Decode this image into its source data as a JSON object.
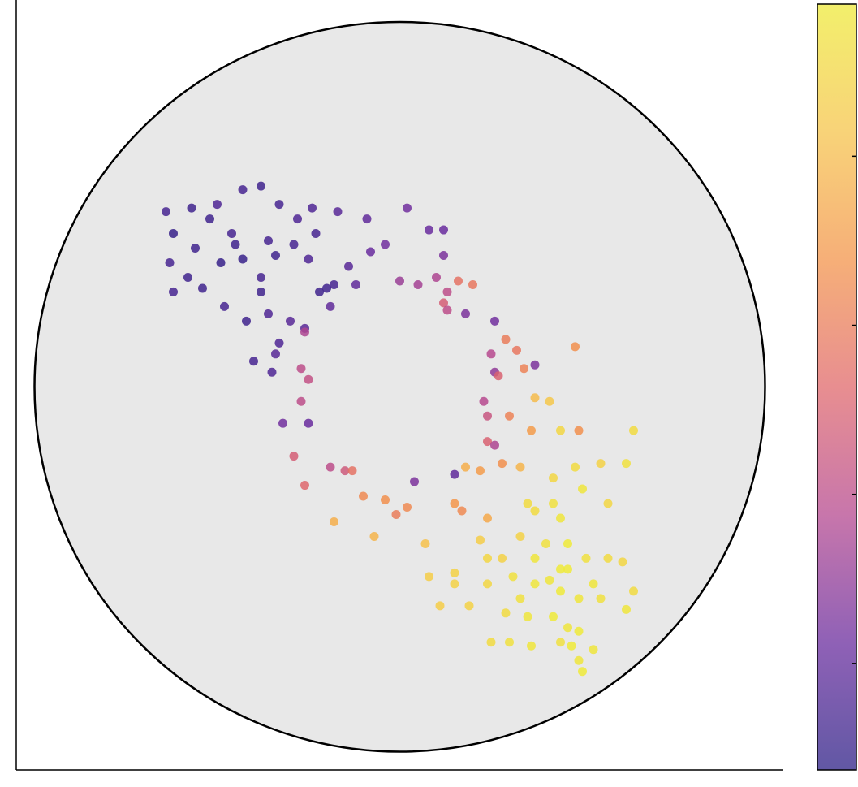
{
  "chart_data": {
    "type": "scatter",
    "x": [
      -0.64,
      -0.57,
      -0.5,
      -0.43,
      -0.38,
      -0.33,
      -0.24,
      -0.17,
      -0.09,
      -0.04,
      -0.62,
      -0.56,
      -0.63,
      -0.58,
      -0.62,
      -0.54,
      -0.49,
      -0.45,
      -0.43,
      -0.38,
      -0.34,
      -0.29,
      -0.25,
      -0.2,
      -0.18,
      -0.22,
      -0.14,
      -0.08,
      -0.12,
      -0.48,
      -0.42,
      -0.36,
      -0.3,
      -0.33,
      -0.4,
      -0.34,
      -0.38,
      -0.46,
      -0.52,
      -0.36,
      -0.28,
      -0.23,
      -0.19,
      -0.26,
      -0.35,
      -0.26,
      -0.27,
      -0.25,
      -0.27,
      -0.32,
      -0.25,
      -0.29,
      -0.26,
      -0.19,
      -0.15,
      -0.13,
      -0.18,
      -0.1,
      -0.07,
      -0.04,
      -0.01,
      0.02,
      0.04,
      0.07,
      0.08,
      0.0,
      0.05,
      0.02,
      0.08,
      0.12,
      0.12,
      0.1,
      0.13,
      0.16,
      0.2,
      0.12,
      0.13,
      0.18,
      0.26,
      0.25,
      0.29,
      0.32,
      0.26,
      0.27,
      0.34,
      0.37,
      0.48,
      0.23,
      0.24,
      0.3,
      0.24,
      0.26,
      0.36,
      0.37,
      0.41,
      0.22,
      0.15,
      0.18,
      0.28,
      0.33,
      0.49,
      0.44,
      0.64,
      0.15,
      0.17,
      0.24,
      0.42,
      0.48,
      0.55,
      0.62,
      0.5,
      0.57,
      0.37,
      0.44,
      0.33,
      0.4,
      0.46,
      0.37,
      0.44,
      0.51,
      0.57,
      0.61,
      0.28,
      0.31,
      0.37,
      0.44,
      0.49,
      0.55,
      0.64,
      0.62,
      0.24,
      0.19,
      0.29,
      0.35,
      0.42,
      0.46,
      0.49,
      0.44,
      0.53,
      0.47,
      0.49,
      0.5,
      0.25,
      0.3,
      0.36,
      0.11,
      0.15,
      0.22,
      0.24,
      0.42,
      0.35,
      0.46,
      0.41,
      0.33,
      0.53,
      0.15
    ],
    "y": [
      0.48,
      0.49,
      0.5,
      0.54,
      0.55,
      0.5,
      0.49,
      0.48,
      0.46,
      0.39,
      0.42,
      0.38,
      0.34,
      0.3,
      0.26,
      0.27,
      0.34,
      0.39,
      0.35,
      0.3,
      0.36,
      0.39,
      0.35,
      0.27,
      0.28,
      0.26,
      0.33,
      0.37,
      0.28,
      0.22,
      0.18,
      0.2,
      0.18,
      0.12,
      0.07,
      0.09,
      0.26,
      0.42,
      0.46,
      0.4,
      0.46,
      0.42,
      0.22,
      0.16,
      0.04,
      0.15,
      0.05,
      0.02,
      -0.04,
      -0.1,
      -0.1,
      -0.19,
      -0.27,
      -0.22,
      -0.23,
      -0.23,
      -0.37,
      -0.3,
      -0.41,
      -0.31,
      -0.35,
      -0.33,
      -0.26,
      -0.43,
      -0.52,
      0.29,
      0.28,
      0.49,
      0.43,
      0.43,
      0.36,
      0.3,
      0.26,
      0.29,
      0.28,
      0.23,
      0.21,
      0.2,
      0.18,
      0.09,
      0.13,
      0.1,
      0.04,
      0.03,
      0.05,
      0.06,
      0.11,
      -0.04,
      -0.08,
      -0.08,
      -0.15,
      -0.16,
      -0.12,
      -0.03,
      -0.04,
      -0.23,
      -0.24,
      -0.22,
      -0.21,
      -0.22,
      -0.12,
      -0.12,
      -0.12,
      -0.32,
      -0.34,
      -0.36,
      -0.25,
      -0.22,
      -0.21,
      -0.21,
      -0.28,
      -0.32,
      -0.34,
      -0.36,
      -0.41,
      -0.43,
      -0.43,
      -0.47,
      -0.5,
      -0.47,
      -0.47,
      -0.48,
      -0.47,
      -0.52,
      -0.54,
      -0.56,
      -0.58,
      -0.58,
      -0.56,
      -0.61,
      -0.54,
      -0.6,
      -0.62,
      -0.63,
      -0.63,
      -0.66,
      -0.67,
      -0.7,
      -0.72,
      -0.71,
      -0.75,
      -0.78,
      -0.7,
      -0.7,
      -0.71,
      -0.6,
      -0.51,
      -0.42,
      -0.47,
      -0.32,
      -0.32,
      -0.5,
      -0.53,
      -0.58,
      -0.54,
      -0.54
    ],
    "c": [
      -0.3,
      -0.4,
      -0.2,
      -0.3,
      -0.4,
      -0.3,
      -0.2,
      -0.1,
      0.0,
      0.2,
      -0.5,
      -0.4,
      -0.3,
      -0.4,
      -0.3,
      -0.4,
      -0.5,
      -0.4,
      -0.5,
      -0.3,
      -0.4,
      -0.3,
      -0.2,
      -0.4,
      -0.3,
      -0.4,
      -0.1,
      0.1,
      0.0,
      -0.3,
      -0.4,
      -0.2,
      -0.1,
      -0.2,
      -0.3,
      -0.1,
      -0.4,
      -0.3,
      -0.4,
      -0.3,
      -0.2,
      -0.3,
      0.0,
      -0.1,
      -0.2,
      0.8,
      1.0,
      1.1,
      1.0,
      0.2,
      0.1,
      1.4,
      1.6,
      1.0,
      1.3,
      1.8,
      2.8,
      2.2,
      2.9,
      2.3,
      2.0,
      2.2,
      0.3,
      3.1,
      3.3,
      0.6,
      0.7,
      0.2,
      0.1,
      0.1,
      0.3,
      0.8,
      1.0,
      1.8,
      1.9,
      1.4,
      1.0,
      0.3,
      0.2,
      0.9,
      2.0,
      1.9,
      0.5,
      1.5,
      2.1,
      0.3,
      2.3,
      0.9,
      1.2,
      2.1,
      1.5,
      0.8,
      2.5,
      3.0,
      3.2,
      2.5,
      0.0,
      2.8,
      2.3,
      2.9,
      2.3,
      3.5,
      3.6,
      2.4,
      2.2,
      2.7,
      3.5,
      3.6,
      3.4,
      3.7,
      3.8,
      3.5,
      3.6,
      3.8,
      3.4,
      3.7,
      3.9,
      3.8,
      3.9,
      3.7,
      3.6,
      3.5,
      3.4,
      3.7,
      3.8,
      3.9,
      3.8,
      3.7,
      3.6,
      3.8,
      3.5,
      3.4,
      3.6,
      3.8,
      3.9,
      3.8,
      3.9,
      3.7,
      3.8,
      3.9,
      3.8,
      3.9,
      3.6,
      3.7,
      3.8,
      3.3,
      3.4,
      3.3,
      3.5,
      3.7,
      3.6,
      3.9,
      3.8,
      3.7,
      3.8,
      3.4
    ],
    "xlim": [
      -1.05,
      1.05
    ],
    "ylim": [
      -1.05,
      1.06
    ],
    "clim": [
      -0.63,
      3.9
    ],
    "cticks": [
      0,
      1,
      2,
      3
    ],
    "colormap": [
      "#2c1f86",
      "#6a2c9e",
      "#b5488f",
      "#e0686b",
      "#f3944a",
      "#f6c44b",
      "#eeea3a"
    ]
  }
}
